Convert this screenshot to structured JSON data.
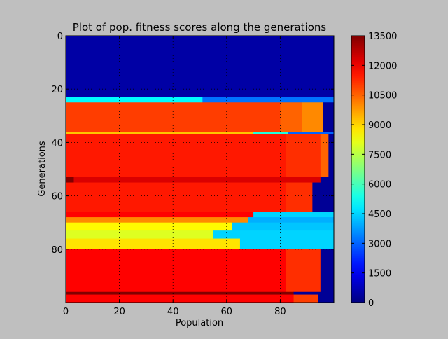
{
  "chart_data": {
    "type": "heatmap",
    "title": "Plot of pop. fitness scores along the generations",
    "xlabel": "Population",
    "ylabel": "Generations",
    "xlim": [
      0,
      100
    ],
    "ylim": [
      0,
      100
    ],
    "y_axis_inverted": true,
    "x_ticks": [
      "0",
      "20",
      "40",
      "60",
      "80"
    ],
    "y_ticks": [
      "0",
      "20",
      "40",
      "60",
      "80"
    ],
    "grid": true,
    "colormap": "jet",
    "colorbar": {
      "range": [
        0,
        13500
      ],
      "ticks": [
        "0",
        "1500",
        "3000",
        "4500",
        "6000",
        "7500",
        "9000",
        "10500",
        "12000",
        "13500"
      ]
    },
    "rows": [
      {
        "generations": [
          0,
          23
        ],
        "segments": [
          [
            0,
            100,
            500
          ]
        ]
      },
      {
        "generations": [
          23,
          25
        ],
        "segments": [
          [
            0,
            51,
            5000
          ],
          [
            51,
            100,
            3200
          ]
        ]
      },
      {
        "generations": [
          25,
          36
        ],
        "segments": [
          [
            0,
            80,
            11000
          ],
          [
            80,
            88,
            10500
          ],
          [
            88,
            96,
            10000
          ],
          [
            96,
            100,
            300
          ]
        ]
      },
      {
        "generations": [
          36,
          37
        ],
        "segments": [
          [
            0,
            70,
            9200
          ],
          [
            70,
            83,
            5500
          ],
          [
            83,
            100,
            3000
          ]
        ]
      },
      {
        "generations": [
          37,
          53
        ],
        "segments": [
          [
            0,
            82,
            11500
          ],
          [
            82,
            95,
            11200
          ],
          [
            95,
            98,
            10500
          ],
          [
            98,
            100,
            300
          ]
        ]
      },
      {
        "generations": [
          53,
          55
        ],
        "segments": [
          [
            0,
            3,
            13500
          ],
          [
            3,
            95,
            12300
          ],
          [
            95,
            100,
            300
          ]
        ]
      },
      {
        "generations": [
          55,
          66
        ],
        "segments": [
          [
            0,
            82,
            11500
          ],
          [
            82,
            92,
            11200
          ],
          [
            92,
            100,
            300
          ]
        ]
      },
      {
        "generations": [
          66,
          68
        ],
        "segments": [
          [
            0,
            70,
            11800
          ],
          [
            70,
            100,
            4500
          ]
        ]
      },
      {
        "generations": [
          68,
          70
        ],
        "segments": [
          [
            0,
            68,
            10000
          ],
          [
            68,
            100,
            4000
          ]
        ]
      },
      {
        "generations": [
          70,
          73
        ],
        "segments": [
          [
            0,
            62,
            8500
          ],
          [
            62,
            100,
            4300
          ]
        ]
      },
      {
        "generations": [
          73,
          76
        ],
        "segments": [
          [
            0,
            55,
            8000
          ],
          [
            55,
            100,
            4500
          ]
        ]
      },
      {
        "generations": [
          76,
          80
        ],
        "segments": [
          [
            0,
            65,
            8800
          ],
          [
            65,
            100,
            4500
          ]
        ]
      },
      {
        "generations": [
          80,
          96
        ],
        "segments": [
          [
            0,
            82,
            11800
          ],
          [
            82,
            95,
            11200
          ],
          [
            95,
            100,
            300
          ]
        ]
      },
      {
        "generations": [
          96,
          97
        ],
        "segments": [
          [
            0,
            85,
            13500
          ],
          [
            85,
            100,
            300
          ]
        ]
      },
      {
        "generations": [
          97,
          100
        ],
        "segments": [
          [
            0,
            85,
            11800
          ],
          [
            85,
            94,
            11000
          ],
          [
            94,
            100,
            300
          ]
        ]
      }
    ]
  }
}
